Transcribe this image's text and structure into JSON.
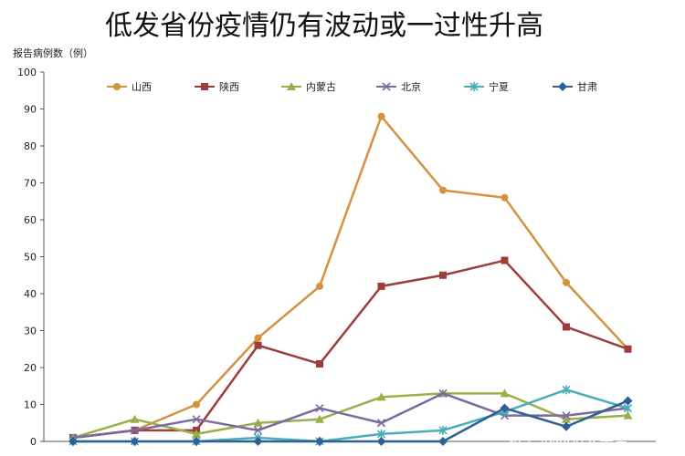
{
  "title": "低发省份疫情仍有波动或一过性升高",
  "watermark": "知乎 @养殖大学堂",
  "chart_data": {
    "type": "line",
    "ylabel": "报告病例数（例）",
    "ylim": [
      0,
      100
    ],
    "yticks": [
      0,
      10,
      20,
      30,
      40,
      50,
      60,
      70,
      80,
      90,
      100
    ],
    "x": [
      1,
      2,
      3,
      4,
      5,
      6,
      7,
      8,
      9,
      10
    ],
    "xticks_visible": false,
    "grid": false,
    "legend_position": "top",
    "series": [
      {
        "name": "山西",
        "color": "#d4923f",
        "marker": "circle",
        "values": [
          1,
          3,
          10,
          28,
          42,
          88,
          68,
          66,
          43,
          25
        ]
      },
      {
        "name": "陕西",
        "color": "#9e3b3b",
        "marker": "square",
        "values": [
          1,
          3,
          3,
          26,
          21,
          42,
          45,
          49,
          31,
          25
        ]
      },
      {
        "name": "内蒙古",
        "color": "#9aae4a",
        "marker": "triangle",
        "values": [
          1,
          6,
          2,
          5,
          6,
          12,
          13,
          13,
          6,
          7
        ]
      },
      {
        "name": "北京",
        "color": "#7c6a9e",
        "marker": "x",
        "values": [
          1,
          3,
          6,
          3,
          9,
          5,
          13,
          7,
          7,
          9
        ]
      },
      {
        "name": "宁夏",
        "color": "#4aaeb8",
        "marker": "star",
        "values": [
          0,
          0,
          0,
          1,
          0,
          2,
          3,
          8,
          14,
          9
        ]
      },
      {
        "name": "甘肃",
        "color": "#2f5f95",
        "marker": "diamond",
        "values": [
          0,
          0,
          0,
          0,
          0,
          0,
          0,
          9,
          4,
          11
        ]
      }
    ]
  }
}
